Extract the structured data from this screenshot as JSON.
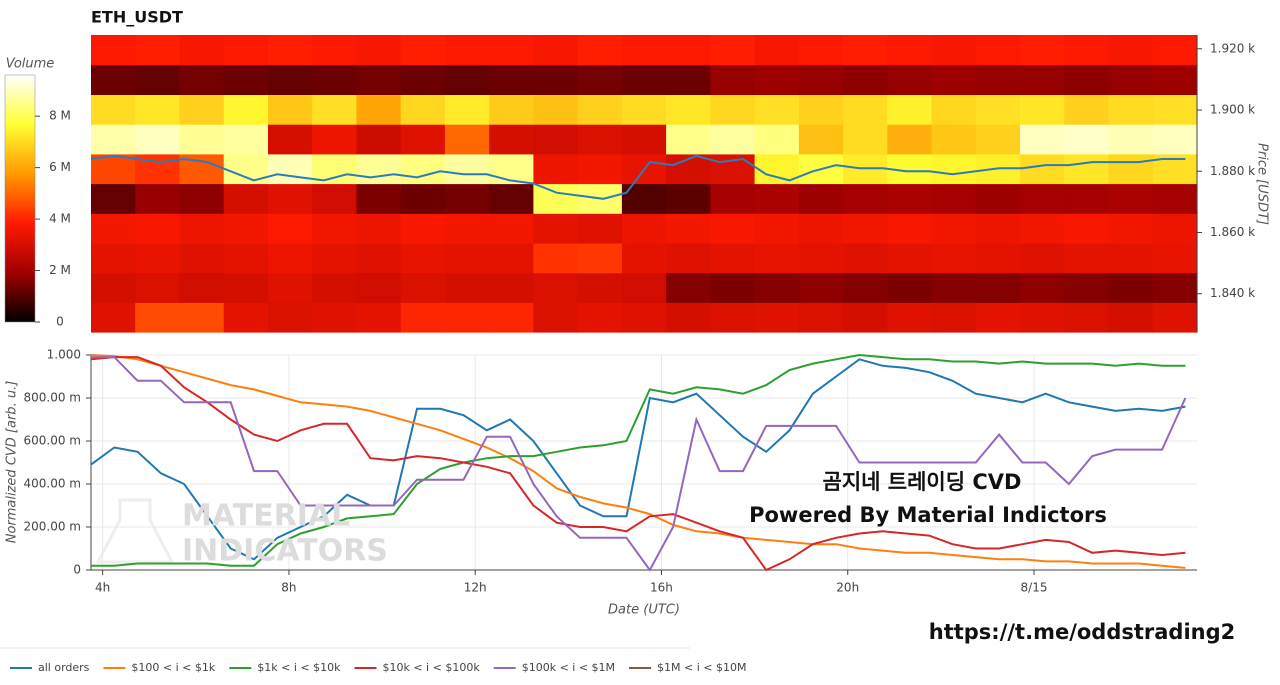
{
  "chart_data": [
    {
      "type": "heatmap",
      "title": "ETH_USDT",
      "ylabel": "Price [USDT]",
      "xlim": [
        3.75,
        27.5
      ],
      "ylim": [
        1827.5,
        1924.5
      ],
      "yticks": [
        {
          "value": 1840,
          "label": "1.840 k"
        },
        {
          "value": 1860,
          "label": "1.860 k"
        },
        {
          "value": 1880,
          "label": "1.880 k"
        },
        {
          "value": 1900,
          "label": "1.900 k"
        },
        {
          "value": 1920,
          "label": "1.920 k"
        }
      ],
      "x_bins": [
        3.75,
        4.7,
        5.65,
        6.6,
        7.55,
        8.5,
        9.45,
        10.4,
        11.35,
        12.3,
        13.25,
        14.2,
        15.15,
        16.1,
        17.05,
        18,
        18.95,
        19.9,
        20.85,
        21.8,
        22.75,
        23.7,
        24.65,
        25.6,
        26.55,
        27.5
      ],
      "y_bins": [
        1827.5,
        1837.2,
        1846.9,
        1856.6,
        1866.3,
        1876,
        1885.7,
        1895.4,
        1905.1,
        1914.8,
        1924.5
      ],
      "colorbar_title": "Volume",
      "colorscale": [
        "#000000",
        "#a00000",
        "#ff1a00",
        "#ff9900",
        "#ffff33",
        "#ffffff"
      ],
      "zlim": [
        0,
        9600000
      ],
      "colorbar_ticks": [
        0,
        {
          "value": 2000000,
          "label": "2 M"
        },
        {
          "value": 4000000,
          "label": "4 M"
        },
        {
          "value": 6000000,
          "label": "6 M"
        },
        {
          "value": 8000000,
          "label": "8 M"
        }
      ],
      "values": [
        [
          3200000,
          4600000,
          4600000,
          3300000,
          3100000,
          3200000,
          3300000,
          4000000,
          4000000,
          4000000,
          3100000,
          3300000,
          3200000,
          3000000,
          3100000,
          3200000,
          3100000,
          3000000,
          3200000,
          3100000,
          3300000,
          3200000,
          3100000,
          3000000,
          3200000
        ],
        [
          3000000,
          3100000,
          2900000,
          3000000,
          3200000,
          3000000,
          2900000,
          3100000,
          3000000,
          3000000,
          3100000,
          3000000,
          2900000,
          1600000,
          1500000,
          1600000,
          1700000,
          1600000,
          1500000,
          1600000,
          1600000,
          1700000,
          1600000,
          1500000,
          1600000
        ],
        [
          3300000,
          3400000,
          3200000,
          3300000,
          3500000,
          3300000,
          3200000,
          3400000,
          3300000,
          3300000,
          4200000,
          4300000,
          3300000,
          3200000,
          3300000,
          3400000,
          3300000,
          3200000,
          3300000,
          3400000,
          3300000,
          3200000,
          3300000,
          3300000,
          3400000
        ],
        [
          3600000,
          3700000,
          3500000,
          3600000,
          3800000,
          3600000,
          3500000,
          3700000,
          3600000,
          3600000,
          3300000,
          3200000,
          3500000,
          3600000,
          3700000,
          3600000,
          3500000,
          3600000,
          3700000,
          3600000,
          3500000,
          3600000,
          3700000,
          3600000,
          3500000
        ],
        [
          1200000,
          1800000,
          1700000,
          3000000,
          3200000,
          2900000,
          1500000,
          1300000,
          1400000,
          1200000,
          8000000,
          8200000,
          1000000,
          1100000,
          2000000,
          2100000,
          1900000,
          2000000,
          2100000,
          2000000,
          1900000,
          2000000,
          2000000,
          2100000,
          2000000
        ],
        [
          4500000,
          4200000,
          4800000,
          8500000,
          8900000,
          8300000,
          8600000,
          8400000,
          8700000,
          8500000,
          3500000,
          3600000,
          3400000,
          3000000,
          3100000,
          7500000,
          7800000,
          7300000,
          7600000,
          7500000,
          7400000,
          7000000,
          7200000,
          6900000,
          7100000
        ],
        [
          8800000,
          9000000,
          8600000,
          8700000,
          3000000,
          3500000,
          2800000,
          3200000,
          5000000,
          3000000,
          2900000,
          3100000,
          3000000,
          8500000,
          8700000,
          8400000,
          6500000,
          7000000,
          6200000,
          6600000,
          6800000,
          9000000,
          9100000,
          8900000,
          9000000
        ],
        [
          7000000,
          7200000,
          6800000,
          7500000,
          6600000,
          7100000,
          6000000,
          6900000,
          7300000,
          6700000,
          6500000,
          6800000,
          7000000,
          7200000,
          6900000,
          7100000,
          6800000,
          7000000,
          7400000,
          6900000,
          7100000,
          7200000,
          6800000,
          7000000,
          7100000
        ],
        [
          1300000,
          1200000,
          1400000,
          1300000,
          1200000,
          1300000,
          1400000,
          1300000,
          1200000,
          1300000,
          1300000,
          1400000,
          1300000,
          1300000,
          1800000,
          1900000,
          1800000,
          1700000,
          1800000,
          1900000,
          1800000,
          1800000,
          1700000,
          1800000,
          1900000
        ],
        [
          3800000,
          3900000,
          3700000,
          3800000,
          3900000,
          3800000,
          3700000,
          3900000,
          3800000,
          3800000,
          3700000,
          3900000,
          3800000,
          3800000,
          3900000,
          3700000,
          3800000,
          3900000,
          3800000,
          3700000,
          3800000,
          3900000,
          3800000,
          3700000,
          3800000
        ]
      ],
      "price": {
        "color": "#2b7bbf",
        "x": [
          3.75,
          4.25,
          4.75,
          5.25,
          5.75,
          6.25,
          6.75,
          7.25,
          7.75,
          8.25,
          8.75,
          9.25,
          9.75,
          10.25,
          10.75,
          11.25,
          11.75,
          12.25,
          12.75,
          13.25,
          13.75,
          14.25,
          14.75,
          15.25,
          15.75,
          16.25,
          16.75,
          17.25,
          17.75,
          18.25,
          18.75,
          19.25,
          19.75,
          20.25,
          20.75,
          21.25,
          21.75,
          22.25,
          22.75,
          23.25,
          23.75,
          24.25,
          24.75,
          25.25,
          25.75,
          26.25,
          26.75,
          27.25
        ],
        "values": [
          1884,
          1885,
          1884,
          1883,
          1884,
          1883,
          1880,
          1877,
          1879,
          1878,
          1877,
          1879,
          1878,
          1879,
          1878,
          1880,
          1879,
          1879,
          1877,
          1876,
          1873,
          1872,
          1871,
          1873,
          1883,
          1882,
          1885,
          1883,
          1884,
          1879,
          1877,
          1880,
          1882,
          1881,
          1881,
          1880,
          1880,
          1879,
          1880,
          1881,
          1881,
          1882,
          1882,
          1883,
          1883,
          1883,
          1884,
          1884
        ]
      }
    },
    {
      "type": "line",
      "xlabel": "Date (UTC)",
      "ylabel": "Normalized CVD [arb. u.]",
      "grid": true,
      "legend": "bottom-left",
      "xlim": [
        3.75,
        27.5
      ],
      "ylim": [
        0,
        1
      ],
      "xticks": [
        {
          "value": 4,
          "label": "4h"
        },
        {
          "value": 8,
          "label": "8h"
        },
        {
          "value": 12,
          "label": "12h"
        },
        {
          "value": 16,
          "label": "16h"
        },
        {
          "value": 20,
          "label": "20h"
        },
        {
          "value": 24,
          "label": "8/15"
        }
      ],
      "yticks": [
        0,
        {
          "value": 0.2,
          "label": "200.00 m"
        },
        {
          "value": 0.4,
          "label": "400.00 m"
        },
        {
          "value": 0.6,
          "label": "600.00 m"
        },
        {
          "value": 0.8,
          "label": "800.00 m"
        },
        {
          "value": 1,
          "label": "1.000"
        }
      ],
      "x": [
        3.75,
        4.25,
        4.75,
        5.25,
        5.75,
        6.25,
        6.75,
        7.25,
        7.75,
        8.25,
        8.75,
        9.25,
        9.75,
        10.25,
        10.75,
        11.25,
        11.75,
        12.25,
        12.75,
        13.25,
        13.75,
        14.25,
        14.75,
        15.25,
        15.75,
        16.25,
        16.75,
        17.25,
        17.75,
        18.25,
        18.75,
        19.25,
        19.75,
        20.25,
        20.75,
        21.25,
        21.75,
        22.25,
        22.75,
        23.25,
        23.75,
        24.25,
        24.75,
        25.25,
        25.75,
        26.25,
        26.75,
        27.25
      ],
      "series": [
        {
          "name": "all orders",
          "color": "#1f77b4",
          "values": [
            0.49,
            0.57,
            0.55,
            0.45,
            0.4,
            0.25,
            0.1,
            0.05,
            0.15,
            0.2,
            0.25,
            0.35,
            0.3,
            0.3,
            0.75,
            0.75,
            0.72,
            0.65,
            0.7,
            0.6,
            0.45,
            0.3,
            0.25,
            0.25,
            0.8,
            0.78,
            0.82,
            0.72,
            0.62,
            0.55,
            0.65,
            0.82,
            0.9,
            0.98,
            0.95,
            0.94,
            0.92,
            0.88,
            0.82,
            0.8,
            0.78,
            0.82,
            0.78,
            0.76,
            0.74,
            0.75,
            0.74,
            0.76
          ]
        },
        {
          "name": "$100 < i < $1k",
          "color": "#ff7f0e",
          "values": [
            1.0,
            0.995,
            0.98,
            0.95,
            0.92,
            0.89,
            0.86,
            0.84,
            0.81,
            0.78,
            0.77,
            0.76,
            0.74,
            0.71,
            0.68,
            0.65,
            0.61,
            0.57,
            0.52,
            0.46,
            0.38,
            0.34,
            0.31,
            0.29,
            0.26,
            0.21,
            0.18,
            0.17,
            0.15,
            0.14,
            0.13,
            0.12,
            0.12,
            0.1,
            0.09,
            0.08,
            0.08,
            0.07,
            0.06,
            0.05,
            0.05,
            0.04,
            0.04,
            0.03,
            0.03,
            0.03,
            0.02,
            0.01
          ]
        },
        {
          "name": "$1k < i < $10k",
          "color": "#2ca02c",
          "values": [
            0.02,
            0.02,
            0.03,
            0.03,
            0.03,
            0.03,
            0.02,
            0.02,
            0.12,
            0.17,
            0.2,
            0.24,
            0.25,
            0.26,
            0.4,
            0.47,
            0.5,
            0.52,
            0.53,
            0.53,
            0.55,
            0.57,
            0.58,
            0.6,
            0.84,
            0.82,
            0.85,
            0.84,
            0.82,
            0.86,
            0.93,
            0.96,
            0.98,
            1.0,
            0.99,
            0.98,
            0.98,
            0.97,
            0.97,
            0.96,
            0.97,
            0.96,
            0.96,
            0.96,
            0.95,
            0.96,
            0.95,
            0.95
          ]
        },
        {
          "name": "$10k < i < $100k",
          "color": "#d62728",
          "values": [
            0.98,
            0.99,
            0.99,
            0.95,
            0.85,
            0.78,
            0.7,
            0.63,
            0.6,
            0.65,
            0.68,
            0.68,
            0.52,
            0.51,
            0.53,
            0.52,
            0.5,
            0.48,
            0.45,
            0.3,
            0.22,
            0.2,
            0.2,
            0.18,
            0.25,
            0.26,
            0.22,
            0.18,
            0.15,
            0.0,
            0.05,
            0.12,
            0.15,
            0.17,
            0.18,
            0.17,
            0.16,
            0.12,
            0.1,
            0.1,
            0.12,
            0.14,
            0.13,
            0.08,
            0.09,
            0.08,
            0.07,
            0.08
          ]
        },
        {
          "name": "$100k < i < $1M",
          "color": "#9467bd",
          "values": [
            0.99,
            0.99,
            0.88,
            0.88,
            0.78,
            0.78,
            0.78,
            0.46,
            0.46,
            0.3,
            0.3,
            0.3,
            0.3,
            0.3,
            0.42,
            0.42,
            0.42,
            0.62,
            0.62,
            0.4,
            0.25,
            0.15,
            0.15,
            0.15,
            0,
            0.2,
            0.7,
            0.46,
            0.46,
            0.67,
            0.67,
            0.67,
            0.67,
            0.5,
            0.5,
            0.5,
            0.5,
            0.5,
            0.5,
            0.63,
            0.5,
            0.5,
            0.4,
            0.53,
            0.56,
            0.56,
            0.56,
            0.8
          ]
        },
        {
          "name": "$1M < i < $10M",
          "color": "#8c564b",
          "values": [
            null,
            null,
            null,
            null,
            null,
            null,
            null,
            null,
            null,
            null,
            null,
            null,
            null,
            null,
            null,
            null,
            null,
            null,
            null,
            null,
            null,
            null,
            null,
            null,
            null,
            null,
            null,
            null,
            null,
            null,
            null,
            null,
            null,
            null,
            null,
            null,
            null,
            null,
            null,
            null,
            null,
            null,
            null,
            null,
            null,
            null,
            null,
            null
          ]
        }
      ],
      "watermark": [
        "MATERIAL",
        "INDICATORS"
      ],
      "annotations": [
        "곰지네 트레이딩 CVD",
        "Powered By Material Indictors",
        "https://t.me/oddstrading2"
      ]
    }
  ]
}
